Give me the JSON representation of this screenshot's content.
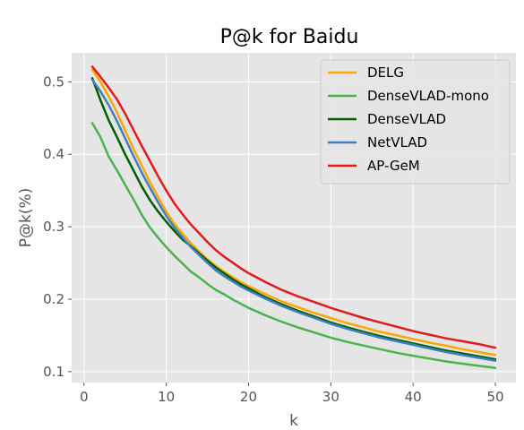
{
  "chart_data": {
    "type": "line",
    "title": "P@k for Baidu",
    "xlabel": "k",
    "ylabel": "P@k(%)",
    "xlim": [
      -1.5,
      52.5
    ],
    "ylim": [
      0.085,
      0.54
    ],
    "xticks": [
      0,
      10,
      20,
      30,
      40,
      50
    ],
    "yticks": [
      0.1,
      0.2,
      0.3,
      0.4,
      0.5
    ],
    "grid": true,
    "legend_position": "top-right",
    "background": "#e5e5e5",
    "x": [
      1,
      2,
      3,
      4,
      5,
      6,
      7,
      8,
      9,
      10,
      11,
      12,
      13,
      14,
      15,
      16,
      17,
      18,
      19,
      20,
      22,
      24,
      26,
      28,
      30,
      32,
      34,
      36,
      38,
      40,
      42,
      44,
      46,
      48,
      50
    ],
    "series": [
      {
        "name": "DELG",
        "color": "#ffa500",
        "values": [
          0.517,
          0.5,
          0.48,
          0.458,
          0.433,
          0.408,
          0.385,
          0.362,
          0.341,
          0.321,
          0.304,
          0.29,
          0.277,
          0.266,
          0.255,
          0.246,
          0.238,
          0.231,
          0.224,
          0.218,
          0.207,
          0.197,
          0.189,
          0.181,
          0.174,
          0.167,
          0.161,
          0.155,
          0.15,
          0.145,
          0.14,
          0.136,
          0.131,
          0.127,
          0.123
        ]
      },
      {
        "name": "DenseVLAD-mono",
        "color": "#4cb34c",
        "values": [
          0.443,
          0.424,
          0.397,
          0.378,
          0.358,
          0.338,
          0.317,
          0.299,
          0.285,
          0.272,
          0.26,
          0.249,
          0.238,
          0.23,
          0.221,
          0.213,
          0.207,
          0.2,
          0.194,
          0.188,
          0.178,
          0.169,
          0.161,
          0.154,
          0.147,
          0.141,
          0.136,
          0.131,
          0.126,
          0.122,
          0.118,
          0.114,
          0.111,
          0.108,
          0.105
        ]
      },
      {
        "name": "DenseVLAD",
        "color": "#005f00",
        "values": [
          0.505,
          0.475,
          0.447,
          0.424,
          0.4,
          0.378,
          0.356,
          0.337,
          0.321,
          0.307,
          0.294,
          0.282,
          0.273,
          0.263,
          0.253,
          0.244,
          0.236,
          0.228,
          0.221,
          0.215,
          0.203,
          0.193,
          0.184,
          0.176,
          0.168,
          0.161,
          0.155,
          0.149,
          0.144,
          0.139,
          0.134,
          0.129,
          0.125,
          0.121,
          0.117
        ]
      },
      {
        "name": "NetVLAD",
        "color": "#3f7fbf",
        "values": [
          0.503,
          0.487,
          0.468,
          0.446,
          0.422,
          0.398,
          0.375,
          0.354,
          0.334,
          0.315,
          0.299,
          0.285,
          0.272,
          0.261,
          0.25,
          0.24,
          0.232,
          0.225,
          0.218,
          0.212,
          0.201,
          0.191,
          0.182,
          0.174,
          0.166,
          0.159,
          0.153,
          0.147,
          0.142,
          0.137,
          0.132,
          0.127,
          0.123,
          0.119,
          0.115
        ]
      },
      {
        "name": "AP-GeM",
        "color": "#e31a1c",
        "values": [
          0.521,
          0.507,
          0.492,
          0.476,
          0.456,
          0.434,
          0.412,
          0.391,
          0.37,
          0.35,
          0.332,
          0.317,
          0.303,
          0.291,
          0.279,
          0.268,
          0.259,
          0.251,
          0.243,
          0.236,
          0.224,
          0.213,
          0.204,
          0.196,
          0.188,
          0.181,
          0.174,
          0.168,
          0.162,
          0.156,
          0.151,
          0.146,
          0.142,
          0.138,
          0.133
        ]
      }
    ]
  }
}
